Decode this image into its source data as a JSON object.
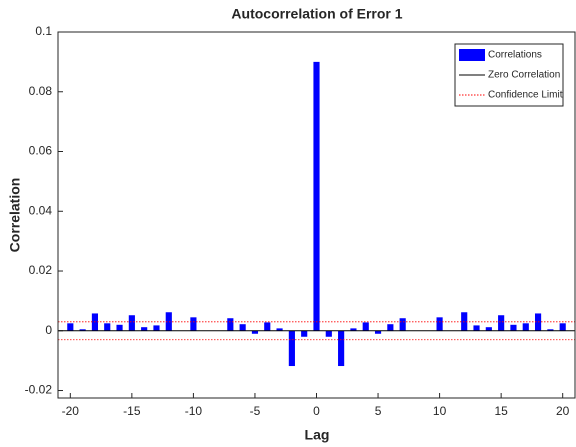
{
  "chart_data": {
    "type": "bar",
    "title": "Autocorrelation of Error 1",
    "x_label": "Lag",
    "y_label": "Correlation",
    "x": [
      -20,
      -19,
      -18,
      -17,
      -16,
      -15,
      -14,
      -13,
      -12,
      -11,
      -10,
      -9,
      -8,
      -7,
      -6,
      -5,
      -4,
      -3,
      -2,
      -1,
      0,
      1,
      2,
      3,
      4,
      5,
      6,
      7,
      8,
      9,
      10,
      11,
      12,
      13,
      14,
      15,
      16,
      17,
      18,
      19,
      20
    ],
    "series": [
      {
        "name": "Correlations",
        "color": "#0000ff",
        "values": [
          0.0025,
          0.0005,
          0.0058,
          0.0025,
          0.002,
          0.0052,
          0.0012,
          0.0018,
          0.0062,
          0,
          0.0045,
          0,
          0,
          0.0042,
          0.0022,
          -0.001,
          0.0028,
          0.0008,
          -0.0118,
          -0.002,
          0.09,
          -0.002,
          -0.0118,
          0.0008,
          0.0028,
          -0.001,
          0.0022,
          0.0042,
          0,
          0,
          0.0045,
          0,
          0.0062,
          0.0018,
          0.0012,
          0.0052,
          0.002,
          0.0025,
          0.0058,
          0.0005,
          0.0025
        ]
      }
    ],
    "reference_lines": [
      {
        "name": "Zero Correlation",
        "color": "#000000",
        "style": "solid",
        "values": [
          0
        ]
      },
      {
        "name": "Confidence Limit",
        "color": "#ff0000",
        "style": "dotted",
        "values": [
          0.003,
          -0.003
        ]
      }
    ],
    "xlim": [
      -21,
      21
    ],
    "ylim": [
      -0.0225,
      0.1
    ],
    "xticks": [
      -20,
      -15,
      -10,
      -5,
      0,
      5,
      10,
      15,
      20
    ],
    "yticks": [
      -0.02,
      0,
      0.02,
      0.04,
      0.06,
      0.08,
      0.1
    ],
    "legend": "upper right"
  }
}
